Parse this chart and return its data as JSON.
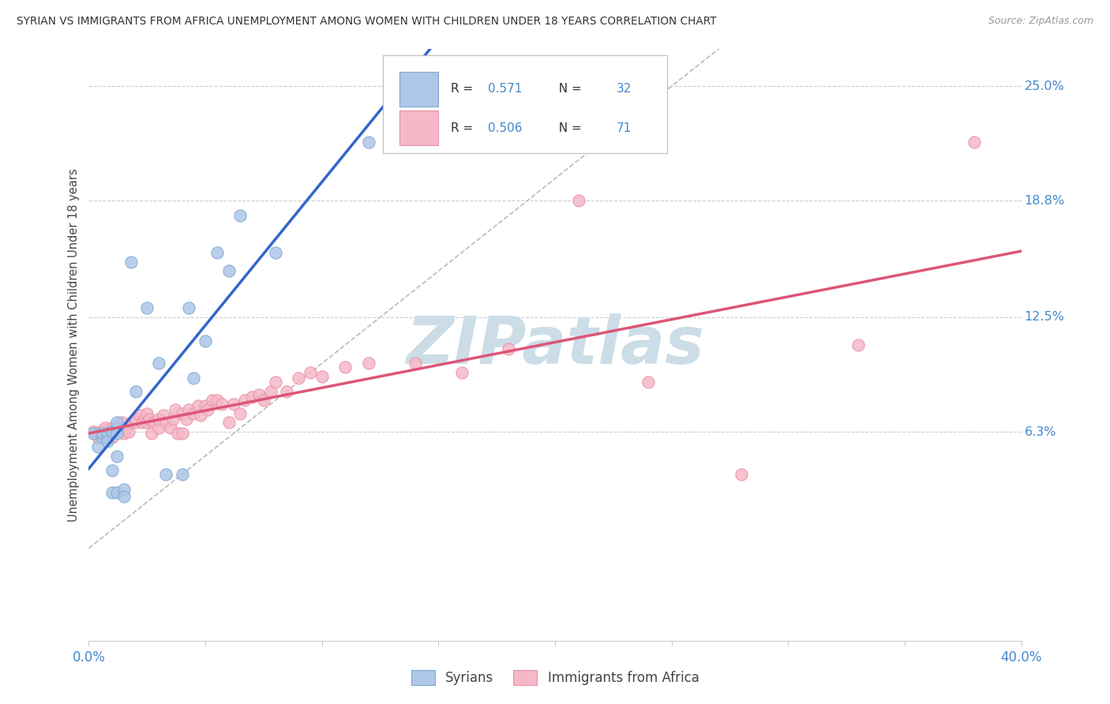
{
  "title": "SYRIAN VS IMMIGRANTS FROM AFRICA UNEMPLOYMENT AMONG WOMEN WITH CHILDREN UNDER 18 YEARS CORRELATION CHART",
  "source": "Source: ZipAtlas.com",
  "ylabel": "Unemployment Among Women with Children Under 18 years",
  "ytick_labels": [
    "6.3%",
    "12.5%",
    "18.8%",
    "25.0%"
  ],
  "ytick_values": [
    0.063,
    0.125,
    0.188,
    0.25
  ],
  "xmin": 0.0,
  "xmax": 0.4,
  "ymin": -0.05,
  "ymax": 0.27,
  "syrians_fill": "#aec6e8",
  "syrians_edge": "#7aaad0",
  "africa_fill": "#f5b8c8",
  "africa_edge": "#e890a8",
  "trend_blue": "#3366cc",
  "trend_pink": "#dd5577",
  "ref_line_color": "#bbbbbb",
  "watermark_color": "#ccdde8",
  "bg_color": "#ffffff",
  "title_color": "#333333",
  "label_color_blue": "#4488cc",
  "label_color_dark": "#333333",
  "grid_color": "#cccccc",
  "syrians_x": [
    0.002,
    0.004,
    0.006,
    0.006,
    0.008,
    0.008,
    0.008,
    0.01,
    0.01,
    0.01,
    0.01,
    0.012,
    0.012,
    0.012,
    0.012,
    0.012,
    0.015,
    0.015,
    0.018,
    0.02,
    0.025,
    0.03,
    0.033,
    0.04,
    0.043,
    0.045,
    0.05,
    0.055,
    0.06,
    0.065,
    0.08,
    0.12
  ],
  "syrians_y": [
    0.062,
    0.055,
    0.06,
    0.062,
    0.06,
    0.062,
    0.058,
    0.042,
    0.063,
    0.063,
    0.03,
    0.065,
    0.068,
    0.062,
    0.05,
    0.03,
    0.032,
    0.028,
    0.155,
    0.085,
    0.13,
    0.1,
    0.04,
    0.04,
    0.13,
    0.092,
    0.112,
    0.16,
    0.15,
    0.18,
    0.16,
    0.22
  ],
  "africa_x": [
    0.002,
    0.003,
    0.004,
    0.005,
    0.006,
    0.007,
    0.008,
    0.009,
    0.01,
    0.01,
    0.01,
    0.012,
    0.013,
    0.014,
    0.015,
    0.016,
    0.017,
    0.018,
    0.02,
    0.02,
    0.022,
    0.023,
    0.024,
    0.025,
    0.025,
    0.026,
    0.027,
    0.028,
    0.03,
    0.03,
    0.032,
    0.033,
    0.035,
    0.036,
    0.037,
    0.038,
    0.04,
    0.04,
    0.042,
    0.043,
    0.045,
    0.047,
    0.048,
    0.05,
    0.051,
    0.053,
    0.055,
    0.057,
    0.06,
    0.062,
    0.065,
    0.067,
    0.07,
    0.073,
    0.075,
    0.078,
    0.08,
    0.085,
    0.09,
    0.095,
    0.1,
    0.11,
    0.12,
    0.14,
    0.16,
    0.18,
    0.21,
    0.24,
    0.28,
    0.33,
    0.38
  ],
  "africa_y": [
    0.063,
    0.062,
    0.06,
    0.063,
    0.062,
    0.065,
    0.062,
    0.063,
    0.065,
    0.062,
    0.06,
    0.063,
    0.065,
    0.068,
    0.062,
    0.065,
    0.063,
    0.068,
    0.068,
    0.07,
    0.072,
    0.068,
    0.07,
    0.073,
    0.068,
    0.07,
    0.062,
    0.068,
    0.065,
    0.07,
    0.072,
    0.068,
    0.065,
    0.07,
    0.075,
    0.062,
    0.062,
    0.073,
    0.07,
    0.075,
    0.073,
    0.077,
    0.072,
    0.077,
    0.075,
    0.08,
    0.08,
    0.078,
    0.068,
    0.078,
    0.073,
    0.08,
    0.082,
    0.083,
    0.08,
    0.085,
    0.09,
    0.085,
    0.092,
    0.095,
    0.093,
    0.098,
    0.1,
    0.1,
    0.095,
    0.108,
    0.188,
    0.09,
    0.04,
    0.11,
    0.22
  ]
}
